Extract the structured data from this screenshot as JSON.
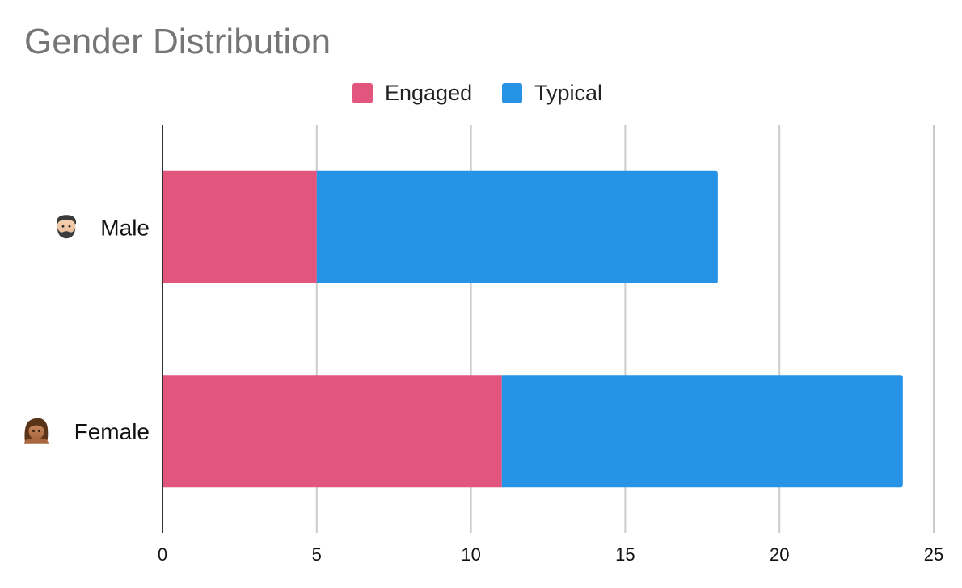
{
  "chart_data": {
    "type": "bar",
    "orientation": "horizontal",
    "stacked": true,
    "title": "Gender Distribution",
    "xlabel": "",
    "ylabel": "",
    "categories": [
      "Male",
      "Female"
    ],
    "category_icons": [
      "man-beard-icon",
      "woman-icon"
    ],
    "series": [
      {
        "name": "Engaged",
        "color": "#e2557c",
        "values": [
          5,
          11
        ]
      },
      {
        "name": "Typical",
        "color": "#2693e6",
        "values": [
          13,
          13
        ]
      }
    ],
    "xlim": [
      0,
      25
    ],
    "xticks": [
      0,
      5,
      10,
      15,
      20,
      25
    ],
    "grid": true,
    "legend_position": "top-center"
  }
}
